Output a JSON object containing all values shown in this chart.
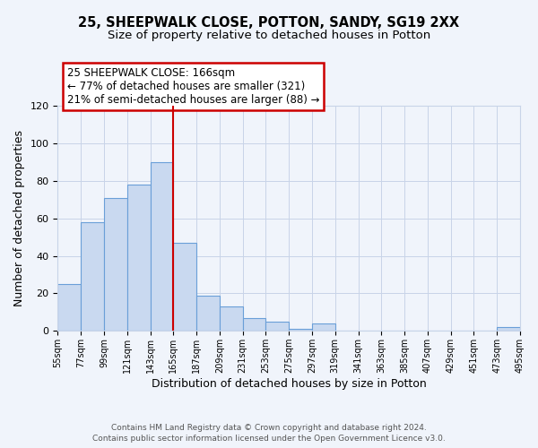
{
  "title1": "25, SHEEPWALK CLOSE, POTTON, SANDY, SG19 2XX",
  "title2": "Size of property relative to detached houses in Potton",
  "xlabel": "Distribution of detached houses by size in Potton",
  "ylabel": "Number of detached properties",
  "bin_edges": [
    55,
    77,
    99,
    121,
    143,
    165,
    187,
    209,
    231,
    253,
    275,
    297,
    319,
    341,
    363,
    385,
    407,
    429,
    451,
    473,
    495
  ],
  "bar_heights": [
    25,
    58,
    71,
    78,
    90,
    47,
    19,
    13,
    7,
    5,
    1,
    4,
    0,
    0,
    0,
    0,
    0,
    0,
    0,
    2
  ],
  "bar_facecolor": "#c9d9f0",
  "bar_edgecolor": "#6a9fd8",
  "vline_x": 165,
  "vline_color": "#cc0000",
  "annotation_title": "25 SHEEPWALK CLOSE: 166sqm",
  "annotation_line1": "← 77% of detached houses are smaller (321)",
  "annotation_line2": "21% of semi-detached houses are larger (88) →",
  "annotation_box_edgecolor": "#cc0000",
  "annotation_box_facecolor": "#ffffff",
  "ylim": [
    0,
    120
  ],
  "yticks": [
    0,
    20,
    40,
    60,
    80,
    100,
    120
  ],
  "tick_labels": [
    "55sqm",
    "77sqm",
    "99sqm",
    "121sqm",
    "143sqm",
    "165sqm",
    "187sqm",
    "209sqm",
    "231sqm",
    "253sqm",
    "275sqm",
    "297sqm",
    "319sqm",
    "341sqm",
    "363sqm",
    "385sqm",
    "407sqm",
    "429sqm",
    "451sqm",
    "473sqm",
    "495sqm"
  ],
  "footer1": "Contains HM Land Registry data © Crown copyright and database right 2024.",
  "footer2": "Contains public sector information licensed under the Open Government Licence v3.0.",
  "bg_color": "#f0f4fb",
  "grid_color": "#c8d4e8"
}
